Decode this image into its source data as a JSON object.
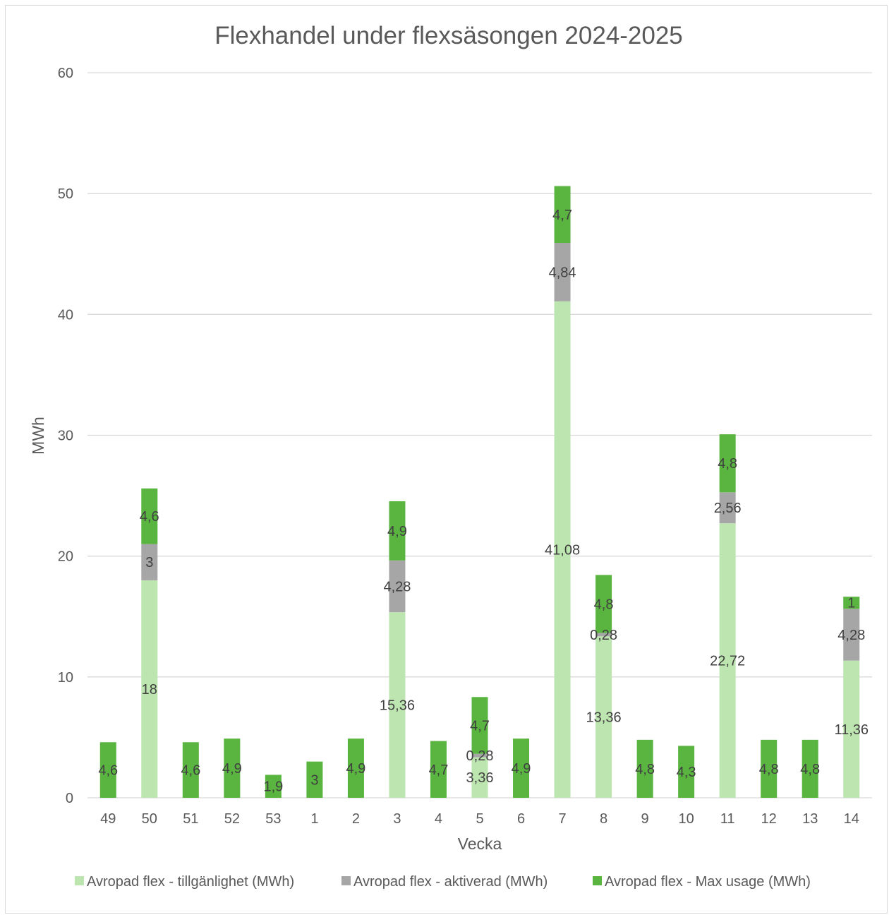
{
  "chart_data": {
    "type": "bar",
    "stacked": true,
    "title": "Flexhandel under flexsäsongen 2024-2025",
    "xlabel": "Vecka",
    "ylabel": "MWh",
    "ylim": [
      0,
      60
    ],
    "yticks": [
      0,
      10,
      20,
      30,
      40,
      50,
      60
    ],
    "grid": true,
    "legend_position": "bottom",
    "categories": [
      "49",
      "50",
      "51",
      "52",
      "53",
      "1",
      "2",
      "3",
      "4",
      "5",
      "6",
      "7",
      "8",
      "9",
      "10",
      "11",
      "12",
      "13",
      "14"
    ],
    "series": [
      {
        "name": "Avropad flex - tillgänlighet (MWh)",
        "color": "#bde5b0",
        "values": [
          null,
          18,
          null,
          null,
          null,
          null,
          null,
          15.36,
          null,
          3.36,
          null,
          41.08,
          13.36,
          null,
          null,
          22.72,
          null,
          null,
          11.36
        ],
        "labels": [
          null,
          "18",
          null,
          null,
          null,
          null,
          null,
          "15,36",
          null,
          "3,36",
          null,
          "41,08",
          "13,36",
          null,
          null,
          "22,72",
          null,
          null,
          "11,36"
        ]
      },
      {
        "name": "Avropad flex - aktiverad (MWh)",
        "color": "#a6a6a6",
        "values": [
          null,
          3,
          null,
          null,
          null,
          null,
          null,
          4.28,
          null,
          0.28,
          null,
          4.84,
          0.28,
          null,
          null,
          2.56,
          null,
          null,
          4.28
        ],
        "labels": [
          null,
          "3",
          null,
          null,
          null,
          null,
          null,
          "4,28",
          null,
          "0,28",
          null,
          "4,84",
          "0,28",
          null,
          null,
          "2,56",
          null,
          null,
          "4,28"
        ]
      },
      {
        "name": "Avropad flex - Max usage (MWh)",
        "color": "#5ab540",
        "values": [
          4.6,
          4.6,
          4.6,
          4.9,
          1.9,
          3,
          4.9,
          4.9,
          4.7,
          4.7,
          4.9,
          4.7,
          4.8,
          4.8,
          4.3,
          4.8,
          4.8,
          4.8,
          1
        ],
        "labels": [
          "4,6",
          "4,6",
          "4,6",
          "4,9",
          "1,9",
          "3",
          "4,9",
          "4,9",
          "4,7",
          "4,7",
          "4,9",
          "4,7",
          "4,8",
          "4,8",
          "4,3",
          "4,8",
          "4,8",
          "4,8",
          "1"
        ]
      }
    ]
  }
}
